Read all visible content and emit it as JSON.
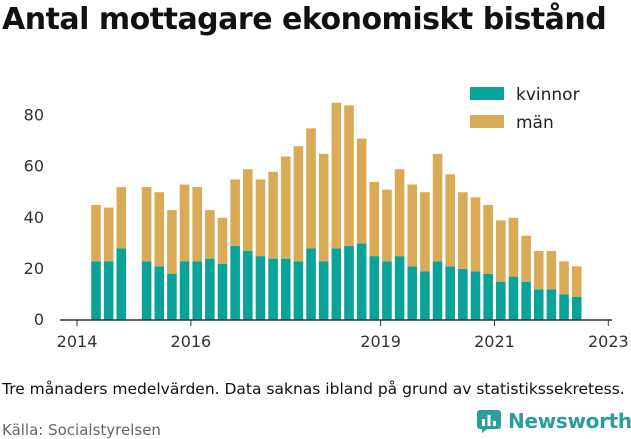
{
  "title": "Antal mottagare ekonomiskt bistånd",
  "caption": "Tre månaders medelvärden. Data saknas ibland på grund av statistikssekretess.",
  "source": "Källa: Socialstyrelsen",
  "brand": {
    "name": "Newsworthy",
    "icon": "newsworthy-logo-icon"
  },
  "colors": {
    "kvinnor": "#0aa39a",
    "man": "#d9ab57",
    "axis": "#333333",
    "grid": "#cccccc"
  },
  "chart_data": {
    "type": "bar",
    "stacked": true,
    "xlabel": "",
    "ylabel": "",
    "ylim": [
      0,
      90
    ],
    "yticks": [
      0,
      20,
      40,
      60,
      80
    ],
    "xticks": [
      {
        "label": "2014",
        "index": -1.5
      },
      {
        "label": "2016",
        "index": 7.5
      },
      {
        "label": "2019",
        "index": 22.5
      },
      {
        "label": "2021",
        "index": 31.5
      },
      {
        "label": "2023",
        "index": 40.5
      }
    ],
    "grid": false,
    "legend_position": "top-right",
    "series": [
      {
        "name": "kvinnor",
        "values": [
          23,
          23,
          28,
          null,
          23,
          21,
          18,
          23,
          23,
          24,
          22,
          29,
          27,
          25,
          24,
          24,
          23,
          28,
          23,
          28,
          29,
          30,
          25,
          23,
          25,
          21,
          19,
          23,
          21,
          20,
          19,
          18,
          15,
          17,
          15,
          12,
          12,
          10,
          9
        ]
      },
      {
        "name": "män",
        "values": [
          22,
          21,
          24,
          null,
          29,
          29,
          25,
          30,
          29,
          19,
          18,
          26,
          32,
          30,
          34,
          40,
          45,
          47,
          42,
          57,
          55,
          41,
          29,
          28,
          34,
          32,
          31,
          42,
          36,
          30,
          29,
          27,
          24,
          23,
          18,
          15,
          15,
          13,
          12
        ]
      }
    ]
  }
}
